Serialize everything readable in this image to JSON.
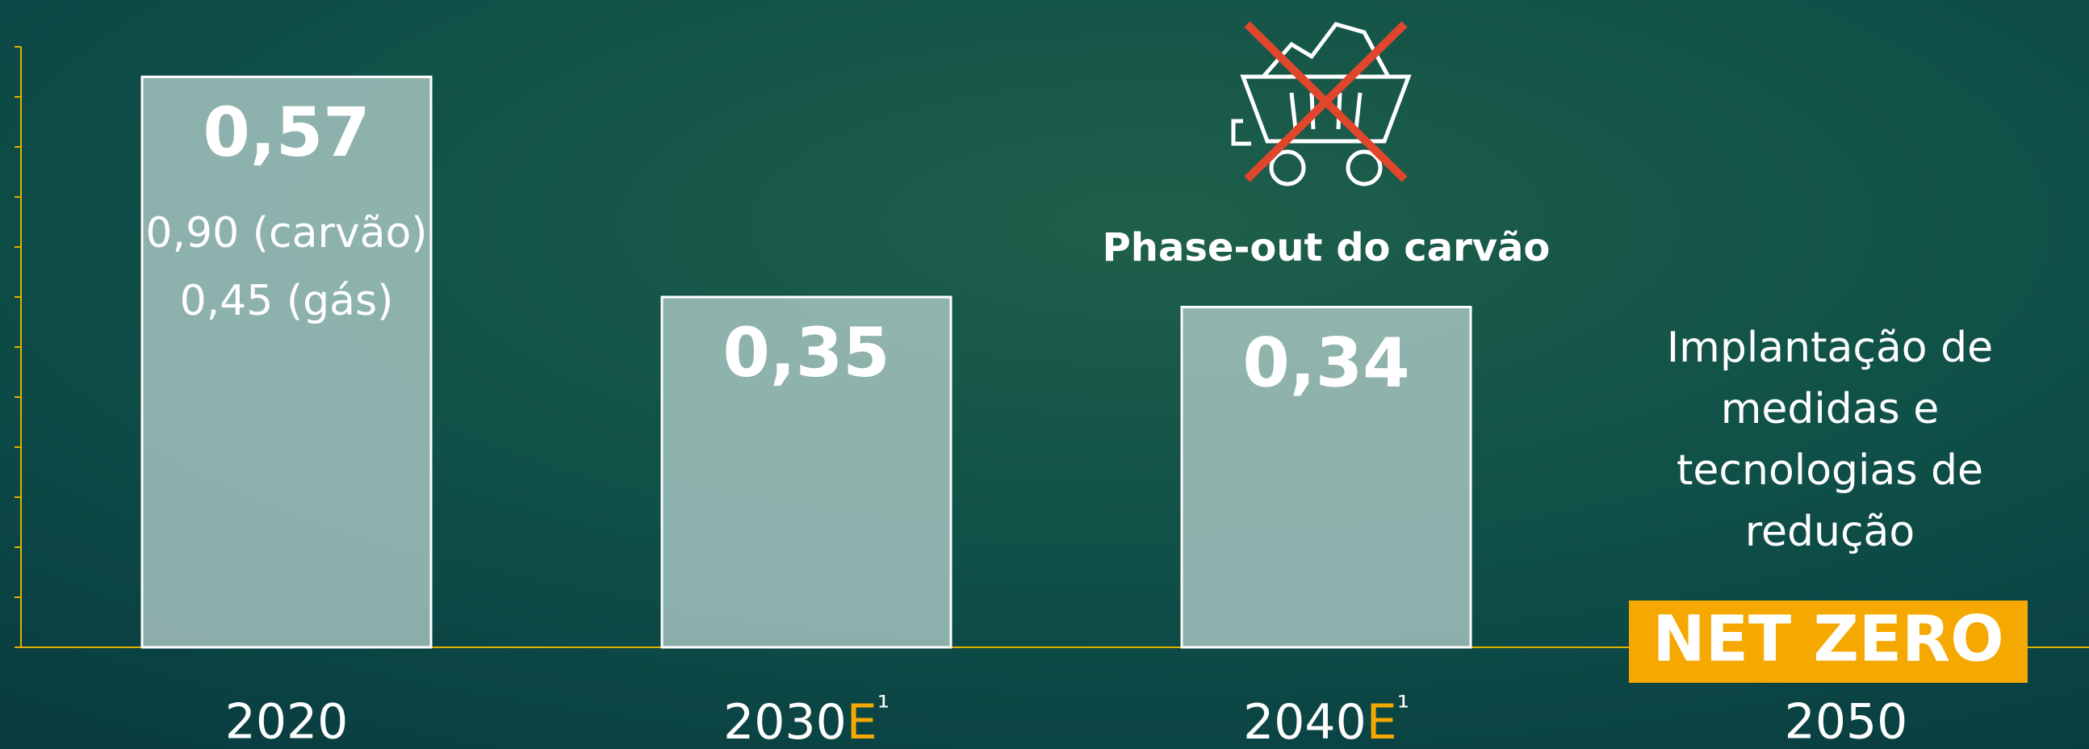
{
  "chart_data": {
    "type": "bar",
    "categories": [
      "2020",
      "2030E¹",
      "2040E¹",
      "2050"
    ],
    "values": [
      0.57,
      0.35,
      0.34,
      null
    ],
    "value_labels": [
      "0,57",
      "0,35",
      "0,34",
      null
    ],
    "ylim": [
      0,
      0.6
    ],
    "yticks": [
      0,
      0.05,
      0.1,
      0.15,
      0.2,
      0.25,
      0.3,
      0.35,
      0.4,
      0.45,
      0.5,
      0.55,
      0.6
    ],
    "bar_color": "rgba(190,215,210,0.72)",
    "axis_color": "#e0b000",
    "accent_color": "#f5a800",
    "annotations": {
      "2020_details": [
        "0,90 (carvão)",
        "0,45 (gás)"
      ],
      "2040_note": "Phase-out do carvão",
      "2050_note": [
        "Implantação de",
        "medidas e",
        "tecnologias de",
        "redução"
      ],
      "2050_badge": "NET ZERO"
    }
  }
}
